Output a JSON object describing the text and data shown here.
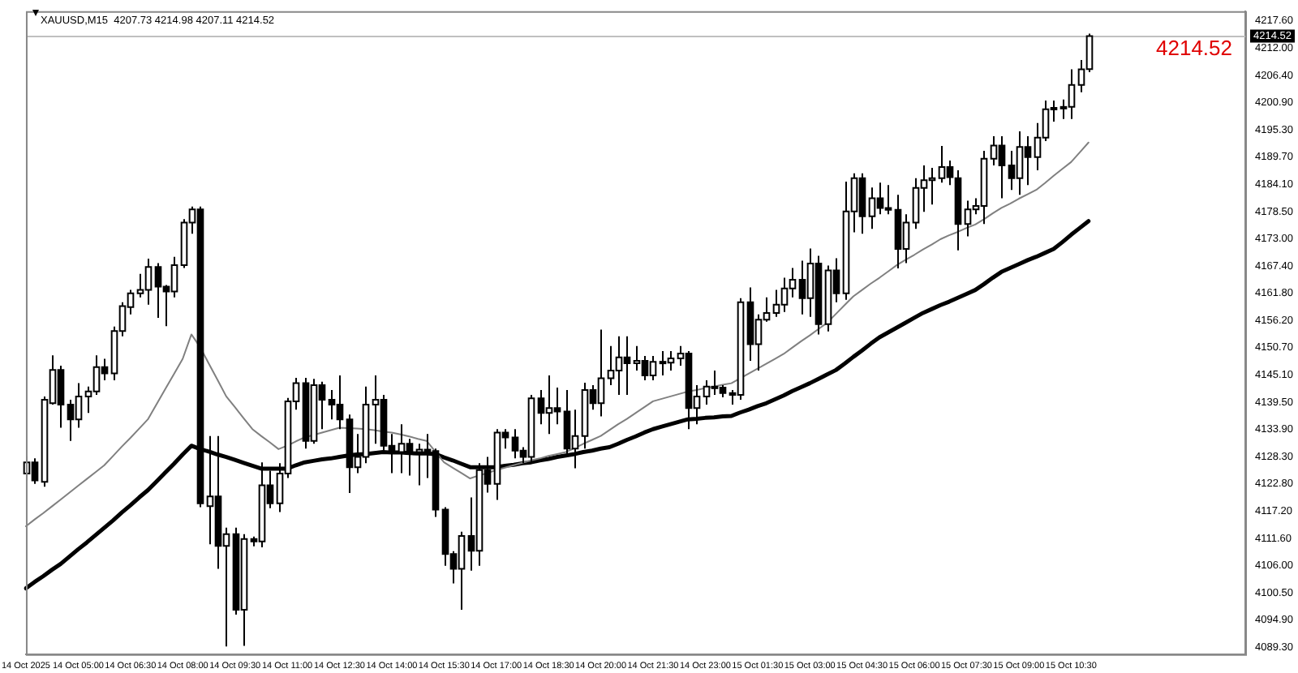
{
  "chart_data": {
    "type": "candlestick",
    "title": "XAUUSD,M15  4207.73 4214.98 4207.11 4214.52",
    "color": "#000000",
    "colors": [
      "#ffffff",
      "#000000",
      "#ffffff",
      "#ffffff",
      "#000000",
      "#000000",
      "#ffffff",
      "#ffffff",
      "#ffffff",
      "#000000",
      "#ffffff",
      "#ffffff",
      "#ffffff",
      "#ffffff",
      "#ffffff",
      "#000000",
      "#000000",
      "#ffffff",
      "#ffffff",
      "#ffffff",
      "#000000",
      "#ffffff",
      "#000000",
      "#ffffff",
      "#000000",
      "#ffffff",
      "#000000",
      "#ffffff",
      "#000000",
      "#ffffff",
      "#ffffff",
      "#ffffff",
      "#000000",
      "#ffffff",
      "#000000",
      "#000000",
      "#000000",
      "#000000",
      "#ffffff",
      "#ffffff",
      "#ffffff",
      "#000000",
      "#000000",
      "#ffffff",
      "#000000",
      "#ffffff",
      "#000000",
      "#000000",
      "#000000",
      "#000000",
      "#ffffff",
      "#000000",
      "#ffffff",
      "#000000",
      "#ffffff",
      "#000000",
      "#000000",
      "#000000",
      "#ffffff",
      "#000000",
      "#ffffff",
      "#000000",
      "#000000",
      "#ffffff",
      "#ffffff",
      "#000000",
      "#ffffff",
      "#ffffff",
      "#ffffff",
      "#000000",
      "#ffffff",
      "#000000",
      "#ffffff",
      "#000000",
      "#ffffff",
      "#ffffff",
      "#000000",
      "#ffffff",
      "#ffffff",
      "#000000",
      "#000000",
      "#000000",
      "#ffffff",
      "#000000",
      "#ffffff",
      "#ffffff",
      "#ffffff",
      "#ffffff",
      "#ffffff",
      "#000000",
      "#ffffff",
      "#000000",
      "#ffffff",
      "#000000",
      "#ffffff",
      "#ffffff",
      "#000000",
      "#ffffff",
      "#000000",
      "#000000",
      "#000000",
      "#ffffff",
      "#ffffff",
      "#ffffff",
      "#ffffff",
      "#ffffff",
      "#000000",
      "#000000",
      "#ffffff",
      "#ffffff",
      "#ffffff",
      "#ffffff",
      "#000000",
      "#000000",
      "#ffffff",
      "#000000",
      "#ffffff",
      "#ffffff",
      "#ffffff",
      "#ffffff",
      "#ffffff",
      "#ffffff",
      "#ffffff",
      null,
      null,
      null,
      null,
      null,
      null,
      null,
      null,
      null,
      null,
      null,
      null,
      null,
      null,
      null,
      null,
      null,
      null
    ],
    "grid": false,
    "legend": false,
    "marker": "none",
    "categories": [
      "14 Oct 2025",
      null,
      null,
      null,
      null,
      null,
      "14 Oct 05:00",
      null,
      null,
      null,
      null,
      null,
      "14 Oct 06:30",
      null,
      null,
      null,
      null,
      null,
      "14 Oct 08:00",
      null,
      null,
      null,
      null,
      null,
      "14 Oct 09:30",
      null,
      null,
      null,
      null,
      null,
      "14 Oct 11:00",
      null,
      null,
      null,
      null,
      null,
      "14 Oct 12:30",
      null,
      null,
      null,
      null,
      null,
      "14 Oct 14:00",
      null,
      null,
      null,
      null,
      null,
      "14 Oct 15:30",
      null,
      null,
      null,
      null,
      null,
      "14 Oct 17:00",
      null,
      null,
      null,
      null,
      null,
      "14 Oct 18:30",
      null,
      null,
      null,
      null,
      null,
      "14 Oct 20:00",
      null,
      null,
      null,
      null,
      null,
      "14 Oct 21:30",
      null,
      null,
      null,
      null,
      null,
      "14 Oct 23:00",
      null,
      null,
      null,
      null,
      null,
      "15 Oct 01:30",
      null,
      null,
      null,
      null,
      null,
      "15 Oct 03:00",
      null,
      null,
      null,
      null,
      null,
      "15 Oct 04:30",
      null,
      null,
      null,
      null,
      null,
      "15 Oct 06:00",
      null,
      null,
      null,
      null,
      null,
      "15 Oct 07:30",
      null,
      null,
      null,
      null,
      null,
      "15 Oct 09:00",
      null,
      null,
      null,
      null,
      null,
      "15 Oct 10:30",
      null,
      null,
      null,
      null,
      null,
      null,
      null,
      null,
      null,
      null,
      null,
      null,
      null,
      null,
      null,
      null,
      null,
      null,
      null,
      null
    ],
    "ohlc": [
      [
        4124.9,
        4128.5,
        4123.5,
        4127.2
      ],
      [
        4127.2,
        4128.0,
        4122.8,
        4123.5
      ],
      [
        4123.2,
        4140.7,
        4122.2,
        4140.0
      ],
      [
        4139.3,
        4149.1,
        4139.0,
        4146.1
      ],
      [
        4146.1,
        4147.0,
        4134.3,
        4139.0
      ],
      [
        4139.0,
        4140.0,
        4131.6,
        4136.0
      ],
      [
        4136.0,
        4143.4,
        4134.3,
        4140.7
      ],
      [
        4140.7,
        4142.7,
        4137.3,
        4141.7
      ],
      [
        4141.7,
        4149.1,
        4141.0,
        4146.7
      ],
      [
        4146.7,
        4148.4,
        4144.0,
        4145.4
      ],
      [
        4145.4,
        4155.0,
        4144.0,
        4154.1
      ],
      [
        4154.1,
        4160.0,
        4153.0,
        4159.2
      ],
      [
        4159.0,
        4162.5,
        4157.5,
        4161.8
      ],
      [
        4161.8,
        4165.8,
        4161.0,
        4162.5
      ],
      [
        4162.5,
        4168.9,
        4159.5,
        4167.2
      ],
      [
        4167.2,
        4168.0,
        4156.8,
        4163.2
      ],
      [
        4163.2,
        4163.5,
        4155.1,
        4162.2
      ],
      [
        4162.2,
        4169.3,
        4161.0,
        4167.6
      ],
      [
        4167.6,
        4177.0,
        4167.0,
        4176.3
      ],
      [
        4176.3,
        4179.6,
        4174.0,
        4179.0
      ],
      [
        4179.0,
        4179.6,
        4118.0,
        4118.8
      ],
      [
        4118.2,
        4132.6,
        4110.4,
        4120.2
      ],
      [
        4120.2,
        4132.6,
        4105.4,
        4110.1
      ],
      [
        4110.1,
        4113.8,
        4089.5,
        4112.5
      ],
      [
        4112.5,
        4113.8,
        4096.0,
        4097.0
      ],
      [
        4097.0,
        4112.5,
        4089.6,
        4111.5
      ],
      [
        4111.5,
        4112.0,
        4110.0,
        4111.0
      ],
      [
        4111.0,
        4127.2,
        4109.8,
        4122.5
      ],
      [
        4122.5,
        4125.5,
        4117.8,
        4118.8
      ],
      [
        4118.8,
        4127.0,
        4117.0,
        4124.9
      ],
      [
        4124.9,
        4140.4,
        4124.0,
        4139.7
      ],
      [
        4139.7,
        4144.5,
        4138.0,
        4143.4
      ],
      [
        4143.4,
        4144.5,
        4130.0,
        4131.6
      ],
      [
        4131.6,
        4144.3,
        4131.0,
        4143.0
      ],
      [
        4143.0,
        4143.7,
        4134.0,
        4140.0
      ],
      [
        4140.0,
        4142.0,
        4136.0,
        4139.0
      ],
      [
        4139.0,
        4145.0,
        4134.0,
        4136.0
      ],
      [
        4136.0,
        4137.0,
        4120.9,
        4126.2
      ],
      [
        4126.2,
        4133.0,
        4125.0,
        4128.3
      ],
      [
        4128.3,
        4142.7,
        4127.0,
        4139.0
      ],
      [
        4139.0,
        4145.0,
        4131.0,
        4140.0
      ],
      [
        4140.0,
        4141.0,
        4129.0,
        4130.6
      ],
      [
        4130.6,
        4133.0,
        4125.0,
        4129.3
      ],
      [
        4129.3,
        4135.0,
        4125.0,
        4131.0
      ],
      [
        4131.0,
        4132.0,
        4124.5,
        4129.3
      ],
      [
        4129.3,
        4131.0,
        4122.5,
        4129.8
      ],
      [
        4129.8,
        4133.0,
        4124.0,
        4129.5
      ],
      [
        4129.5,
        4130.0,
        4116.0,
        4117.5
      ],
      [
        4117.5,
        4118.0,
        4106.0,
        4108.4
      ],
      [
        4108.4,
        4109.0,
        4102.4,
        4105.4
      ],
      [
        4105.4,
        4113.0,
        4097.0,
        4112.1
      ],
      [
        4112.1,
        4120.0,
        4105.0,
        4109.1
      ],
      [
        4109.1,
        4127.0,
        4106.0,
        4125.6
      ],
      [
        4125.6,
        4128.3,
        4121.0,
        4122.8
      ],
      [
        4122.8,
        4134.0,
        4119.5,
        4133.3
      ],
      [
        4133.3,
        4134.0,
        4130.0,
        4132.3
      ],
      [
        4132.3,
        4134.0,
        4128.0,
        4129.6
      ],
      [
        4129.6,
        4130.3,
        4127.0,
        4128.3
      ],
      [
        4128.3,
        4141.0,
        4127.0,
        4140.3
      ],
      [
        4140.3,
        4142.0,
        4135.0,
        4137.3
      ],
      [
        4137.3,
        4145.0,
        4133.0,
        4138.3
      ],
      [
        4138.3,
        4142.5,
        4135.0,
        4137.6
      ],
      [
        4137.6,
        4142.0,
        4129.0,
        4130.0
      ],
      [
        4130.0,
        4138.0,
        4126.0,
        4132.6
      ],
      [
        4132.6,
        4143.5,
        4130.0,
        4142.0
      ],
      [
        4142.0,
        4143.0,
        4138.0,
        4139.3
      ],
      [
        4139.3,
        4154.4,
        4136.6,
        4144.4
      ],
      [
        4144.4,
        4151.0,
        4143.0,
        4146.0
      ],
      [
        4146.0,
        4153.0,
        4141.0,
        4148.7
      ],
      [
        4148.7,
        4153.0,
        4141.0,
        4147.5
      ],
      [
        4147.5,
        4151.0,
        4146.0,
        4148.0
      ],
      [
        4148.0,
        4149.0,
        4144.0,
        4145.0
      ],
      [
        4145.0,
        4149.0,
        4144.0,
        4147.8
      ],
      [
        4147.8,
        4150.0,
        4145.0,
        4147.6
      ],
      [
        4147.6,
        4150.0,
        4146.0,
        4148.5
      ],
      [
        4148.5,
        4151.0,
        4147.0,
        4149.5
      ],
      [
        4149.5,
        4150.0,
        4134.0,
        4138.3
      ],
      [
        4138.3,
        4143.0,
        4135.0,
        4140.7
      ],
      [
        4140.7,
        4144.0,
        4139.0,
        4142.7
      ],
      [
        4142.7,
        4146.0,
        4141.0,
        4142.5
      ],
      [
        4142.5,
        4143.0,
        4140.5,
        4141.4
      ],
      [
        4141.4,
        4142.0,
        4139.0,
        4141.0
      ],
      [
        4141.0,
        4160.8,
        4140.0,
        4160.0
      ],
      [
        4160.0,
        4163.0,
        4148.0,
        4151.4
      ],
      [
        4151.4,
        4157.5,
        4146.0,
        4156.4
      ],
      [
        4156.4,
        4161.0,
        4156.0,
        4157.8
      ],
      [
        4157.8,
        4162.5,
        4157.0,
        4159.5
      ],
      [
        4159.5,
        4165.0,
        4158.0,
        4162.8
      ],
      [
        4162.8,
        4167.0,
        4161.0,
        4164.6
      ],
      [
        4164.6,
        4168.5,
        4157.5,
        4160.8
      ],
      [
        4160.8,
        4171.0,
        4157.0,
        4167.9
      ],
      [
        4167.9,
        4169.5,
        4153.4,
        4155.5
      ],
      [
        4155.5,
        4167.5,
        4154.0,
        4166.5
      ],
      [
        4166.5,
        4169.0,
        4160.0,
        4161.8
      ],
      [
        4161.8,
        4184.7,
        4160.5,
        4178.6
      ],
      [
        4178.6,
        4186.4,
        4174.3,
        4185.4
      ],
      [
        4185.4,
        4186.4,
        4174.0,
        4177.6
      ],
      [
        4177.6,
        4183.5,
        4175.0,
        4181.3
      ],
      [
        4181.3,
        4184.5,
        4178.0,
        4179.3
      ],
      [
        4179.3,
        4184.0,
        4178.0,
        4178.9
      ],
      [
        4178.9,
        4182.0,
        4166.9,
        4170.9
      ],
      [
        4170.9,
        4178.0,
        4168.0,
        4176.3
      ],
      [
        4176.3,
        4185.4,
        4175.0,
        4183.4
      ],
      [
        4183.4,
        4188.0,
        4178.5,
        4185.0
      ],
      [
        4185.0,
        4187.5,
        4180.0,
        4185.4
      ],
      [
        4185.4,
        4192.0,
        4184.5,
        4187.7
      ],
      [
        4187.7,
        4189.0,
        4184.0,
        4185.6
      ],
      [
        4185.4,
        4187.0,
        4170.6,
        4176.0
      ],
      [
        4176.0,
        4180.8,
        4173.5,
        4179.0
      ],
      [
        4179.0,
        4181.3,
        4178.0,
        4179.7
      ],
      [
        4179.7,
        4191.0,
        4176.0,
        4189.4
      ],
      [
        4189.4,
        4194.0,
        4188.0,
        4192.1
      ],
      [
        4192.1,
        4194.0,
        4181.3,
        4188.0
      ],
      [
        4188.0,
        4191.0,
        4183.0,
        4185.4
      ],
      [
        4185.4,
        4195.0,
        4182.0,
        4191.8
      ],
      [
        4191.8,
        4194.0,
        4184.0,
        4189.7
      ],
      [
        4189.7,
        4196.7,
        4187.0,
        4193.7
      ],
      [
        4193.7,
        4201.3,
        4193.0,
        4199.5
      ],
      [
        4199.5,
        4201.3,
        4197.0,
        4199.8
      ],
      [
        4199.8,
        4201.5,
        4197.5,
        4200.0
      ],
      [
        4200.0,
        4207.7,
        4197.5,
        4204.5
      ],
      [
        4204.5,
        4209.6,
        4203.0,
        4207.7
      ],
      [
        4207.73,
        4214.98,
        4207.11,
        4214.52
      ],
      null,
      null,
      null,
      null,
      null,
      null,
      null,
      null,
      null,
      null,
      null,
      null,
      null,
      null,
      null,
      null,
      null,
      null
    ],
    "series": [
      {
        "type": "line",
        "color": "#808080",
        "values": [
          4114.1,
          4115.5,
          4116.8,
          4118.2,
          4119.6,
          4121.0,
          4122.4,
          4123.8,
          4125.2,
          4126.6,
          4128.5,
          4130.4,
          4132.2,
          4134.1,
          4136.0,
          4139.1,
          4142.2,
          4145.3,
          4148.4,
          4153.4,
          4150.8,
          4147.4,
          4144.1,
          4140.7,
          4138.5,
          4136.2,
          4134.0,
          4132.6,
          4131.3,
          4129.9,
          4130.6,
          4131.5,
          4132.3,
          4132.8,
          4133.3,
          4133.8,
          4134.3,
          4134.2,
          4134.1,
          4134.0,
          4133.8,
          4133.5,
          4133.3,
          4132.9,
          4132.5,
          4132.0,
          4131.6,
          4129.4,
          4127.2,
          4126.1,
          4125.0,
          4123.9,
          4124.5,
          4125.0,
          4125.6,
          4126.1,
          4126.6,
          4127.1,
          4127.6,
          4128.0,
          4128.5,
          4128.9,
          4129.3,
          4130.1,
          4131.0,
          4131.8,
          4132.6,
          4133.8,
          4135.0,
          4136.1,
          4137.3,
          4138.5,
          4139.7,
          4140.2,
          4140.7,
          4141.2,
          4141.7,
          4142.0,
          4142.4,
          4142.7,
          4143.1,
          4143.4,
          4144.4,
          4145.4,
          4146.4,
          4147.4,
          4148.4,
          4149.4,
          4150.7,
          4152.0,
          4153.2,
          4154.5,
          4155.8,
          4157.6,
          4159.4,
          4161.2,
          4162.5,
          4163.8,
          4165.0,
          4166.3,
          4167.6,
          4168.7,
          4169.7,
          4170.8,
          4171.8,
          4172.9,
          4173.7,
          4174.4,
          4175.2,
          4175.9,
          4177.0,
          4178.2,
          4179.3,
          4180.2,
          4181.2,
          4182.1,
          4183.0,
          4184.4,
          4185.9,
          4187.3,
          4188.7,
          4190.7,
          4192.7,
          null,
          null,
          null,
          null,
          null,
          null,
          null,
          null,
          null,
          null,
          null,
          null,
          null,
          null,
          null,
          null,
          null,
          null
        ]
      },
      {
        "type": "line",
        "color": "#000000",
        "values": [
          4101.4,
          4102.7,
          4103.9,
          4105.2,
          4106.4,
          4107.9,
          4109.4,
          4110.8,
          4112.3,
          4113.8,
          4115.3,
          4116.9,
          4118.4,
          4120.0,
          4121.5,
          4123.3,
          4125.1,
          4126.9,
          4128.8,
          4130.6,
          4129.9,
          4129.4,
          4128.8,
          4128.3,
          4127.7,
          4127.1,
          4126.5,
          4125.9,
          4125.9,
          4125.9,
          4125.9,
          4126.6,
          4127.2,
          4127.5,
          4127.8,
          4128.0,
          4128.3,
          4128.6,
          4128.8,
          4128.9,
          4129.1,
          4129.3,
          4129.2,
          4129.2,
          4129.1,
          4129.0,
          4129.0,
          4128.9,
          4128.2,
          4127.6,
          4126.9,
          4126.2,
          4126.2,
          4126.2,
          4126.2,
          4126.5,
          4126.7,
          4127.0,
          4127.2,
          4127.6,
          4127.9,
          4128.3,
          4128.6,
          4128.9,
          4129.3,
          4129.6,
          4130.0,
          4130.3,
          4131.0,
          4131.8,
          4132.5,
          4133.3,
          4134.0,
          4134.5,
          4135.0,
          4135.5,
          4136.0,
          4136.1,
          4136.3,
          4136.4,
          4136.6,
          4136.7,
          4137.4,
          4138.0,
          4138.7,
          4139.3,
          4140.1,
          4140.9,
          4141.8,
          4142.6,
          4143.4,
          4144.3,
          4145.2,
          4146.1,
          4147.4,
          4148.8,
          4150.1,
          4151.5,
          4152.8,
          4153.8,
          4154.8,
          4155.8,
          4156.8,
          4157.8,
          4158.6,
          4159.4,
          4160.1,
          4160.9,
          4161.7,
          4162.5,
          4163.7,
          4165.0,
          4166.2,
          4167.0,
          4167.8,
          4168.6,
          4169.3,
          4170.1,
          4170.9,
          4172.3,
          4173.8,
          4175.2,
          4176.6,
          null,
          null,
          null,
          null,
          null,
          null,
          null,
          null,
          null,
          null,
          null,
          null,
          null,
          null,
          null,
          null,
          null,
          null
        ]
      }
    ],
    "ylim": [
      4087.9,
      4219.6
    ],
    "yticks": [
      {
        "value": 4089.3,
        "label": "4089.30"
      },
      {
        "value": 4094.9,
        "label": "4094.90"
      },
      {
        "value": 4100.5,
        "label": "4100.50"
      },
      {
        "value": 4106.0,
        "label": "4106.00"
      },
      {
        "value": 4111.6,
        "label": "4111.60"
      },
      {
        "value": 4117.2,
        "label": "4117.20"
      },
      {
        "value": 4122.8,
        "label": "4122.80"
      },
      {
        "value": 4128.3,
        "label": "4128.30"
      },
      {
        "value": 4133.9,
        "label": "4133.90"
      },
      {
        "value": 4139.5,
        "label": "4139.50"
      },
      {
        "value": 4145.1,
        "label": "4145.10"
      },
      {
        "value": 4150.7,
        "label": "4150.70"
      },
      {
        "value": 4156.2,
        "label": "4156.20"
      },
      {
        "value": 4161.8,
        "label": "4161.80"
      },
      {
        "value": 4167.4,
        "label": "4167.40"
      },
      {
        "value": 4173.0,
        "label": "4173.00"
      },
      {
        "value": 4178.5,
        "label": "4178.50"
      },
      {
        "value": 4184.1,
        "label": "4184.10"
      },
      {
        "value": 4189.7,
        "label": "4189.70"
      },
      {
        "value": 4195.3,
        "label": "4195.30"
      },
      {
        "value": 4200.9,
        "label": "4200.90"
      },
      {
        "value": 4206.4,
        "label": "4206.40"
      },
      {
        "value": 4212.0,
        "label": "4212.00"
      },
      {
        "value": 4217.6,
        "label": "4217.60"
      }
    ],
    "ref_lines": [
      {
        "axis": "y",
        "value": 4214.52,
        "label": "4214.52",
        "color": "#c0c0c0"
      }
    ],
    "annotations": [
      {
        "text": "4214.52",
        "y": 4214.52
      }
    ]
  }
}
